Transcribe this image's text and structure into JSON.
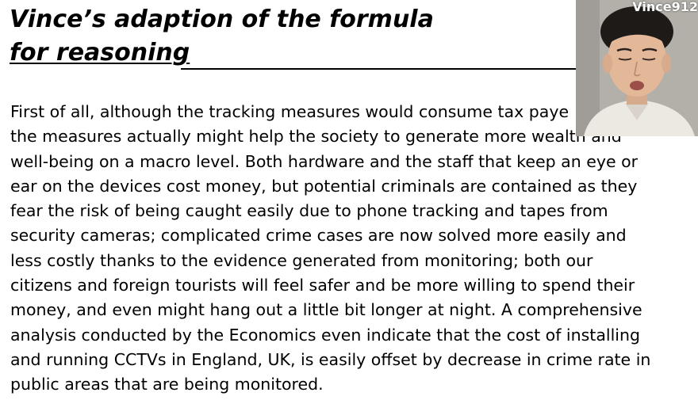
{
  "slide": {
    "title_lines": [
      "Vince’s adaption of the formula",
      "for reasoning"
    ],
    "body_lines": [
      "First of all, although the tracking measures would consume tax paye",
      "the measures actually might help the society to generate more wealth and",
      "well-being on a macro level. Both hardware and the staff that keep an eye or",
      "ear on the devices cost money, but potential criminals are contained as they",
      "fear the risk of being caught easily due to phone tracking and tapes from",
      "security cameras; complicated crime cases are now solved more easily and",
      "less costly thanks to the evidence generated from monitoring; both our",
      "citizens and foreign tourists will feel safer and be more willing to spend their",
      "money, and even might hang out a little bit longer at night. A comprehensive",
      "analysis conducted by the Economics even indicate that the cost of installing",
      "and running CCTVs in England, UK, is easily offset by decrease in crime rate in",
      "public areas that are being monitored."
    ]
  },
  "webcam": {
    "name": "Vince912"
  }
}
